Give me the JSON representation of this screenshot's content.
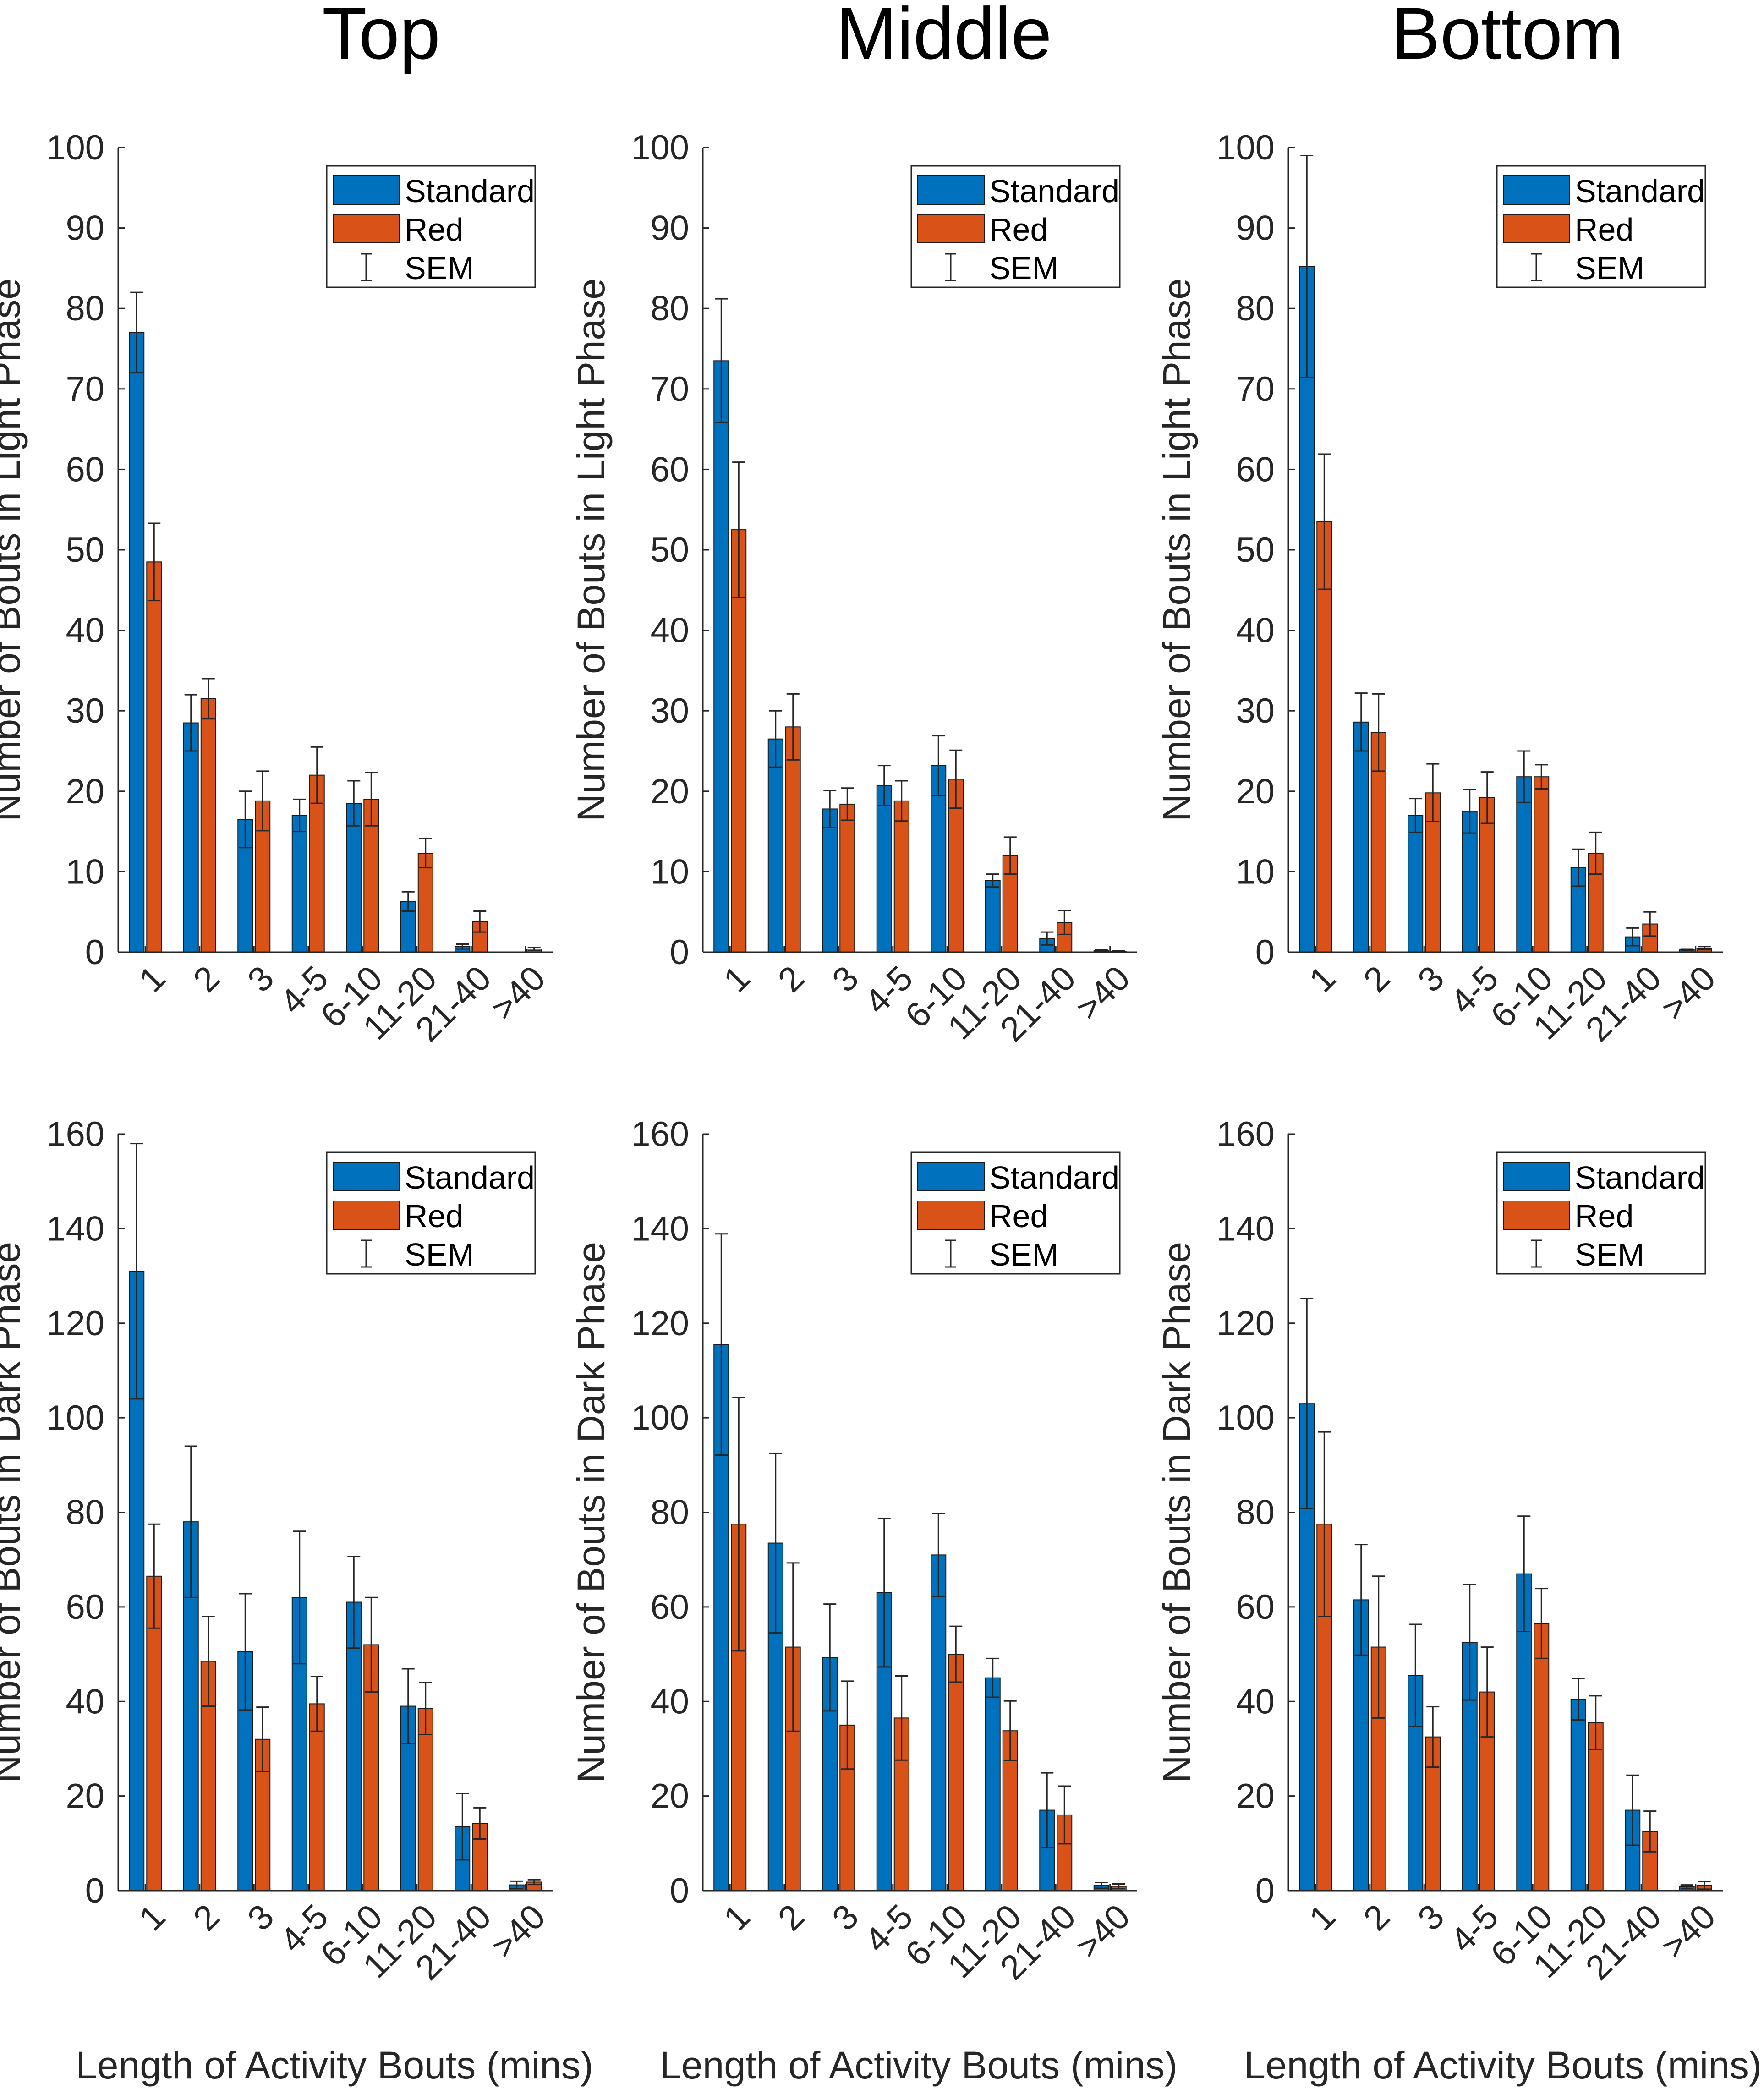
{
  "colors": {
    "standard": "#0072BD",
    "red": "#D95319",
    "error": "#262626",
    "axis": "#262626"
  },
  "column_titles": [
    "Top",
    "Middle",
    "Bottom"
  ],
  "xlabel": "Length of Activity Bouts (mins)",
  "legend": {
    "standard": "Standard",
    "red": "Red",
    "sem": "SEM"
  },
  "chart_data": [
    {
      "type": "bar",
      "panel": "Top - Light",
      "title": "Top",
      "ylabel": "Number of Bouts in Light Phase",
      "xlabel": "",
      "categories": [
        "1",
        "2",
        "3",
        "4-5",
        "6-10",
        "11-20",
        "21-40",
        ">40"
      ],
      "ylim": [
        0,
        100
      ],
      "yticks": [
        0,
        10,
        20,
        30,
        40,
        50,
        60,
        70,
        80,
        90,
        100
      ],
      "series": [
        {
          "name": "Standard",
          "values": [
            77,
            28.5,
            16.5,
            17,
            18.5,
            6.3,
            0.7,
            0
          ],
          "sem": [
            5,
            3.5,
            3.5,
            2,
            2.8,
            1.2,
            0.3,
            0
          ]
        },
        {
          "name": "Red",
          "values": [
            48.5,
            31.5,
            18.8,
            22,
            19,
            12.3,
            3.8,
            0.4
          ],
          "sem": [
            4.8,
            2.5,
            3.7,
            3.5,
            3.3,
            1.8,
            1.3,
            0.2
          ]
        }
      ],
      "legend": [
        "Standard",
        "Red",
        "SEM"
      ]
    },
    {
      "type": "bar",
      "panel": "Middle - Light",
      "title": "Middle",
      "ylabel": "Number of Bouts in Light Phase",
      "xlabel": "",
      "categories": [
        "1",
        "2",
        "3",
        "4-5",
        "6-10",
        "11-20",
        "21-40",
        ">40"
      ],
      "ylim": [
        0,
        100
      ],
      "yticks": [
        0,
        10,
        20,
        30,
        40,
        50,
        60,
        70,
        80,
        90,
        100
      ],
      "series": [
        {
          "name": "Standard",
          "values": [
            73.5,
            26.5,
            17.8,
            20.7,
            23.2,
            8.9,
            1.7,
            0.2
          ],
          "sem": [
            7.7,
            3.5,
            2.3,
            2.5,
            3.7,
            0.8,
            0.8,
            0.1
          ]
        },
        {
          "name": "Red",
          "values": [
            52.5,
            28,
            18.4,
            18.8,
            21.5,
            12,
            3.7,
            0.1
          ],
          "sem": [
            8.4,
            4.1,
            2,
            2.5,
            3.6,
            2.3,
            1.5,
            0.1
          ]
        }
      ],
      "legend": [
        "Standard",
        "Red",
        "SEM"
      ]
    },
    {
      "type": "bar",
      "panel": "Bottom - Light",
      "title": "Bottom",
      "ylabel": "Number of Bouts in Light Phase",
      "xlabel": "",
      "categories": [
        "1",
        "2",
        "3",
        "4-5",
        "6-10",
        "11-20",
        "21-40",
        ">40"
      ],
      "ylim": [
        0,
        100
      ],
      "yticks": [
        0,
        10,
        20,
        30,
        40,
        50,
        60,
        70,
        80,
        90,
        100
      ],
      "series": [
        {
          "name": "Standard",
          "values": [
            85.2,
            28.6,
            17,
            17.5,
            21.8,
            10.5,
            1.9,
            0.3
          ],
          "sem": [
            13.8,
            3.6,
            2.1,
            2.7,
            3.2,
            2.3,
            1.1,
            0.1
          ]
        },
        {
          "name": "Red",
          "values": [
            53.5,
            27.3,
            19.8,
            19.2,
            21.8,
            12.3,
            3.5,
            0.5
          ],
          "sem": [
            8.4,
            4.8,
            3.6,
            3.2,
            1.5,
            2.6,
            1.5,
            0.2
          ]
        }
      ],
      "legend": [
        "Standard",
        "Red",
        "SEM"
      ]
    },
    {
      "type": "bar",
      "panel": "Top - Dark",
      "title": "",
      "ylabel": "Number of Bouts in Dark Phase",
      "xlabel": "Length of Activity Bouts (mins)",
      "categories": [
        "1",
        "2",
        "3",
        "4-5",
        "6-10",
        "11-20",
        "21-40",
        ">40"
      ],
      "ylim": [
        0,
        160
      ],
      "yticks": [
        0,
        20,
        40,
        60,
        80,
        100,
        120,
        140,
        160
      ],
      "series": [
        {
          "name": "Standard",
          "values": [
            131,
            78,
            50.5,
            62,
            61,
            39,
            13.5,
            1.2
          ],
          "sem": [
            27,
            16,
            12.3,
            14,
            9.7,
            7.9,
            7,
            0.8
          ]
        },
        {
          "name": "Red",
          "values": [
            66.5,
            48.5,
            32,
            39.5,
            52,
            38.5,
            14.2,
            1.8
          ],
          "sem": [
            11,
            9.5,
            6.8,
            5.8,
            10,
            5.5,
            3.3,
            0.5
          ]
        }
      ],
      "legend": [
        "Standard",
        "Red",
        "SEM"
      ]
    },
    {
      "type": "bar",
      "panel": "Middle - Dark",
      "title": "",
      "ylabel": "Number of Bouts in Dark Phase",
      "xlabel": "Length of Activity Bouts (mins)",
      "categories": [
        "1",
        "2",
        "3",
        "4-5",
        "6-10",
        "11-20",
        "21-40",
        ">40"
      ],
      "ylim": [
        0,
        160
      ],
      "yticks": [
        0,
        20,
        40,
        60,
        80,
        100,
        120,
        140,
        160
      ],
      "series": [
        {
          "name": "Standard",
          "values": [
            115.5,
            73.5,
            49.3,
            63,
            71,
            45,
            17,
            1.1
          ],
          "sem": [
            23.4,
            19,
            11.3,
            15.7,
            8.8,
            4.1,
            7.9,
            0.6
          ]
        },
        {
          "name": "Red",
          "values": [
            77.5,
            51.5,
            35,
            36.5,
            50,
            33.8,
            16,
            0.9
          ],
          "sem": [
            26.8,
            17.8,
            9.3,
            8.9,
            5.9,
            6.3,
            6.1,
            0.5
          ]
        }
      ],
      "legend": [
        "Standard",
        "Red",
        "SEM"
      ]
    },
    {
      "type": "bar",
      "panel": "Bottom - Dark",
      "title": "",
      "ylabel": "Number of Bouts in Dark Phase",
      "xlabel": "Length of Activity Bouts (mins)",
      "categories": [
        "1",
        "2",
        "3",
        "4-5",
        "6-10",
        "11-20",
        "21-40",
        ">40"
      ],
      "ylim": [
        0,
        160
      ],
      "yticks": [
        0,
        20,
        40,
        60,
        80,
        100,
        120,
        140,
        160
      ],
      "series": [
        {
          "name": "Standard",
          "values": [
            103,
            61.5,
            45.5,
            52.5,
            67,
            40.5,
            17,
            0.8
          ],
          "sem": [
            22.2,
            11.7,
            10.8,
            12.2,
            12.2,
            4.4,
            7.4,
            0.4
          ]
        },
        {
          "name": "Red",
          "values": [
            77.5,
            51.5,
            32.5,
            42,
            56.5,
            35.5,
            12.5,
            1.1
          ],
          "sem": [
            19.5,
            15,
            6.4,
            9.5,
            7.4,
            5.7,
            4.3,
            0.8
          ]
        }
      ],
      "legend": [
        "Standard",
        "Red",
        "SEM"
      ]
    }
  ]
}
